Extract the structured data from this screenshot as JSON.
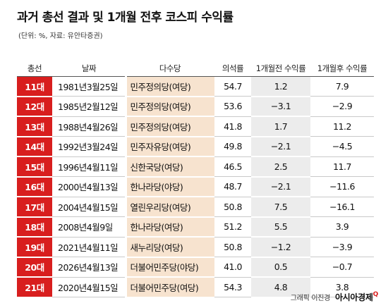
{
  "title": "과거 총선 결과 및 1개월 전후 코스피 수익률",
  "subtitle": "(단위: %, 자료: 유안타증권)",
  "columns": [
    "총선",
    "날짜",
    "다수당",
    "의석률",
    "1개월전 수익률",
    "1개월후 수익률"
  ],
  "rows": [
    {
      "term": "11대",
      "date": "1981년3월25일",
      "party": "민주정의당(여당)",
      "seat": "54.7",
      "before": "1.2",
      "after": "7.9"
    },
    {
      "term": "12대",
      "date": "1985년2월12일",
      "party": "민주정의당(여당)",
      "seat": "53.6",
      "before": "−3.1",
      "after": "−2.9"
    },
    {
      "term": "13대",
      "date": "1988년4월26일",
      "party": "민주정의당(여당)",
      "seat": "41.8",
      "before": "1.7",
      "after": "11.2"
    },
    {
      "term": "14대",
      "date": "1992년3월24일",
      "party": "민주자유당(여당)",
      "seat": "49.8",
      "before": "−2.1",
      "after": "−4.5"
    },
    {
      "term": "15대",
      "date": "1996년4월11일",
      "party": "신한국당(여당)",
      "seat": "46.5",
      "before": "2.5",
      "after": "11.7"
    },
    {
      "term": "16대",
      "date": "2000년4월13일",
      "party": "한나라당(야당)",
      "seat": "48.7",
      "before": "−2.1",
      "after": "−11.6"
    },
    {
      "term": "17대",
      "date": "2004년4월15일",
      "party": "열린우리당(여당)",
      "seat": "50.8",
      "before": "7.5",
      "after": "−16.1"
    },
    {
      "term": "18대",
      "date": "2008년4월9일",
      "party": "한나라당(여당)",
      "seat": "51.2",
      "before": "5.5",
      "after": "3.9"
    },
    {
      "term": "19대",
      "date": "2021년4월11일",
      "party": "새누리당(여당)",
      "seat": "50.8",
      "before": "−1.2",
      "after": "−3.9"
    },
    {
      "term": "20대",
      "date": "2026년4월13일",
      "party": "더불어민주당(야당)",
      "seat": "41.0",
      "before": "0.5",
      "after": "−0.7"
    },
    {
      "term": "21대",
      "date": "2020년4월15일",
      "party": "더불어민주당(여당)",
      "seat": "54.3",
      "before": "4.8",
      "after": "3.8"
    }
  ],
  "footer": {
    "credit": "그래픽 이진경",
    "brand": "아시아경제",
    "brand_mark": "Q"
  },
  "colors": {
    "term_bg": "#d81e1e",
    "party_bg": "#f7e3cf",
    "before_bg": "#ececec"
  }
}
